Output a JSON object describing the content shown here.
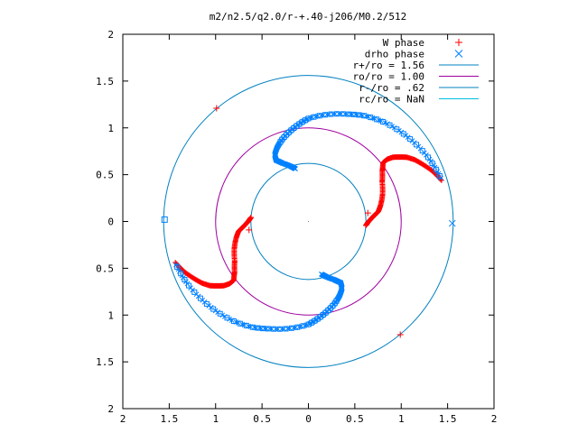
{
  "chart_data": {
    "type": "scatter",
    "title": "m2/n2.5/q2.0/r-+.40-j206/M0.2/512",
    "xlabel": "",
    "ylabel": "",
    "xlim": [
      -2,
      2
    ],
    "ylim": [
      -2,
      2
    ],
    "x_ticks": [
      {
        "value": -2,
        "label": "2"
      },
      {
        "value": -1.5,
        "label": "1.5"
      },
      {
        "value": -1,
        "label": "1"
      },
      {
        "value": -0.5,
        "label": "0.5"
      },
      {
        "value": 0,
        "label": "0"
      },
      {
        "value": 0.5,
        "label": "0.5"
      },
      {
        "value": 1,
        "label": "1"
      },
      {
        "value": 1.5,
        "label": "1.5"
      },
      {
        "value": 2,
        "label": "2"
      }
    ],
    "y_ticks": [
      {
        "value": 2,
        "label": "2"
      },
      {
        "value": 1.5,
        "label": "1.5"
      },
      {
        "value": 1,
        "label": "1"
      },
      {
        "value": 0.5,
        "label": "0.5"
      },
      {
        "value": 0,
        "label": "0"
      },
      {
        "value": -0.5,
        "label": "0.5"
      },
      {
        "value": -1,
        "label": "1"
      },
      {
        "value": -1.5,
        "label": "1.5"
      },
      {
        "value": -2,
        "label": "2"
      }
    ],
    "grid": false,
    "legend": "top-right",
    "series": [
      {
        "name": "W phase",
        "marker": "plus",
        "color": "#ff0000",
        "arms": [
          {
            "r": [
              0.62,
              0.64,
              0.67,
              0.71,
              0.76,
              0.8,
              0.85,
              0.9,
              0.96,
              1.02,
              1.08,
              1.14,
              1.2,
              1.26,
              1.32,
              1.38,
              1.44,
              1.5
            ],
            "theta_deg": [
              -4,
              -1,
              2,
              5,
              8,
              13,
              20,
              28,
              34,
              38,
              38,
              37,
              35,
              33,
              30,
              26,
              22,
              17
            ]
          },
          {
            "r": [
              0.62,
              0.64,
              0.67,
              0.71,
              0.76,
              0.8,
              0.85,
              0.9,
              0.96,
              1.02,
              1.08,
              1.14,
              1.2,
              1.26,
              1.32,
              1.38,
              1.44,
              1.5
            ],
            "theta_deg": [
              176,
              179,
              182,
              185,
              188,
              193,
              200,
              208,
              214,
              218,
              218,
              217,
              215,
              213,
              210,
              206,
              202,
              197
            ]
          }
        ],
        "isolated": [
          {
            "x": -0.99,
            "y": 1.21
          },
          {
            "x": 0.99,
            "y": -1.21
          },
          {
            "x": -0.64,
            "y": -0.09
          },
          {
            "x": 0.64,
            "y": 0.09
          }
        ]
      },
      {
        "name": "drho phase",
        "marker": "cross-square",
        "color": "#0080ff",
        "arms": [
          {
            "r": [
              0.58,
              0.62,
              0.68,
              0.74,
              0.8,
              0.86,
              0.92,
              0.98,
              1.04,
              1.1,
              1.16,
              1.22,
              1.28,
              1.34,
              1.4,
              1.46,
              1.5
            ],
            "theta_deg": [
              -76,
              -72,
              -66,
              -62,
              -63,
              -67,
              -72,
              -78,
              -84,
              -90,
              -100,
              -110,
              -118,
              -128,
              -140,
              -152,
              -162
            ]
          },
          {
            "r": [
              0.58,
              0.62,
              0.68,
              0.74,
              0.8,
              0.86,
              0.92,
              0.98,
              1.04,
              1.1,
              1.16,
              1.22,
              1.28,
              1.34,
              1.4,
              1.46,
              1.5
            ],
            "theta_deg": [
              104,
              108,
              114,
              118,
              117,
              113,
              108,
              102,
              96,
              90,
              80,
              70,
              62,
              52,
              40,
              28,
              18
            ]
          }
        ],
        "isolated": [
          {
            "x": -1.55,
            "y": 0.02
          },
          {
            "x": 1.55,
            "y": -0.02
          }
        ]
      },
      {
        "name": "r+/ro = 1.56",
        "type": "circle",
        "radius": 1.56,
        "color": "#0080c0"
      },
      {
        "name": "ro/ro = 1.00",
        "type": "circle",
        "radius": 1.0,
        "color": "#a000a0"
      },
      {
        "name": "r-/ro = .62",
        "type": "circle",
        "radius": 0.62,
        "color": "#0080c0"
      },
      {
        "name": "rc/ro = NaN",
        "type": "circle",
        "radius": null,
        "color": "#00c0e0"
      }
    ]
  }
}
